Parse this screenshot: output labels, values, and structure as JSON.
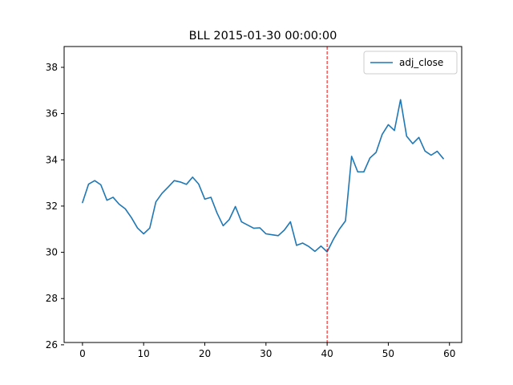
{
  "chart_data": {
    "type": "line",
    "title": "BLL 2015-01-30 00:00:00",
    "xlabel": "",
    "ylabel": "",
    "xlim": [
      -3,
      62
    ],
    "ylim": [
      26.1,
      38.9
    ],
    "x_ticks": [
      0,
      10,
      20,
      30,
      40,
      50,
      60
    ],
    "y_ticks": [
      26,
      28,
      30,
      32,
      34,
      36,
      38
    ],
    "grid": false,
    "legend_position": "top-right",
    "series": [
      {
        "name": "adj_close",
        "color": "#1f77b4",
        "x": [
          0,
          1,
          2,
          3,
          4,
          5,
          6,
          7,
          8,
          9,
          10,
          11,
          12,
          13,
          14,
          15,
          16,
          17,
          18,
          19,
          20,
          21,
          22,
          23,
          24,
          25,
          26,
          27,
          28,
          29,
          30,
          31,
          32,
          33,
          34,
          35,
          36,
          37,
          38,
          39,
          40,
          41,
          42,
          43,
          44,
          45,
          46,
          47,
          48,
          49,
          50,
          51,
          52,
          53,
          54,
          55,
          56,
          57,
          58,
          59
        ],
        "y": [
          32.15,
          32.95,
          33.1,
          32.92,
          32.25,
          32.38,
          32.08,
          31.88,
          31.5,
          31.05,
          30.8,
          31.05,
          32.18,
          32.55,
          32.82,
          33.1,
          33.04,
          32.94,
          33.25,
          32.95,
          32.3,
          32.38,
          31.7,
          31.15,
          31.42,
          31.98,
          31.32,
          31.18,
          31.04,
          31.06,
          30.8,
          30.76,
          30.72,
          30.96,
          31.32,
          30.3,
          30.4,
          30.25,
          30.04,
          30.27,
          30.02,
          30.55,
          31.0,
          31.36,
          34.15,
          33.48,
          33.48,
          34.08,
          34.32,
          35.1,
          35.52,
          35.27,
          36.6,
          35.02,
          34.7,
          34.97,
          34.38,
          34.2,
          34.37,
          34.05
        ]
      }
    ],
    "vline": {
      "x": 40,
      "color": "#ff0000",
      "style": "dashed"
    }
  }
}
